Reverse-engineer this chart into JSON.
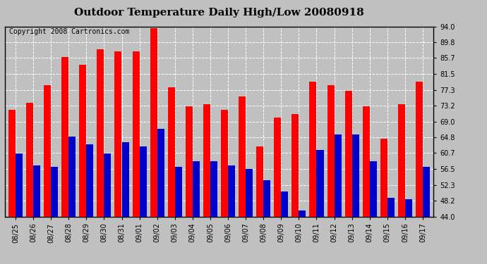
{
  "title": "Outdoor Temperature Daily High/Low 20080918",
  "copyright": "Copyright 2008 Cartronics.com",
  "dates": [
    "08/25",
    "08/26",
    "08/27",
    "08/28",
    "08/29",
    "08/30",
    "08/31",
    "09/01",
    "09/02",
    "09/03",
    "09/04",
    "09/05",
    "09/06",
    "09/07",
    "09/08",
    "09/09",
    "09/10",
    "09/11",
    "09/12",
    "09/13",
    "09/14",
    "09/15",
    "09/16",
    "09/17"
  ],
  "highs": [
    72.0,
    74.0,
    78.5,
    86.0,
    84.0,
    88.0,
    87.5,
    87.5,
    93.5,
    78.0,
    73.0,
    73.5,
    72.0,
    75.5,
    62.5,
    70.0,
    71.0,
    79.5,
    78.5,
    77.0,
    73.0,
    64.5,
    73.5,
    79.5
  ],
  "lows": [
    60.5,
    57.5,
    57.0,
    65.0,
    63.0,
    60.5,
    63.5,
    62.5,
    67.0,
    57.0,
    58.5,
    58.5,
    57.5,
    56.5,
    53.5,
    50.5,
    45.5,
    61.5,
    65.5,
    65.5,
    58.5,
    49.0,
    48.5,
    57.0
  ],
  "high_color": "#ff0000",
  "low_color": "#0000cc",
  "bg_color": "#c0c0c0",
  "plot_bg_color": "#c0c0c0",
  "ylim_min": 44.0,
  "ylim_max": 94.0,
  "yticks": [
    44.0,
    48.2,
    52.3,
    56.5,
    60.7,
    64.8,
    69.0,
    73.2,
    77.3,
    81.5,
    85.7,
    89.8,
    94.0
  ],
  "bar_width": 0.4,
  "title_fontsize": 11,
  "tick_fontsize": 7,
  "copyright_fontsize": 7
}
